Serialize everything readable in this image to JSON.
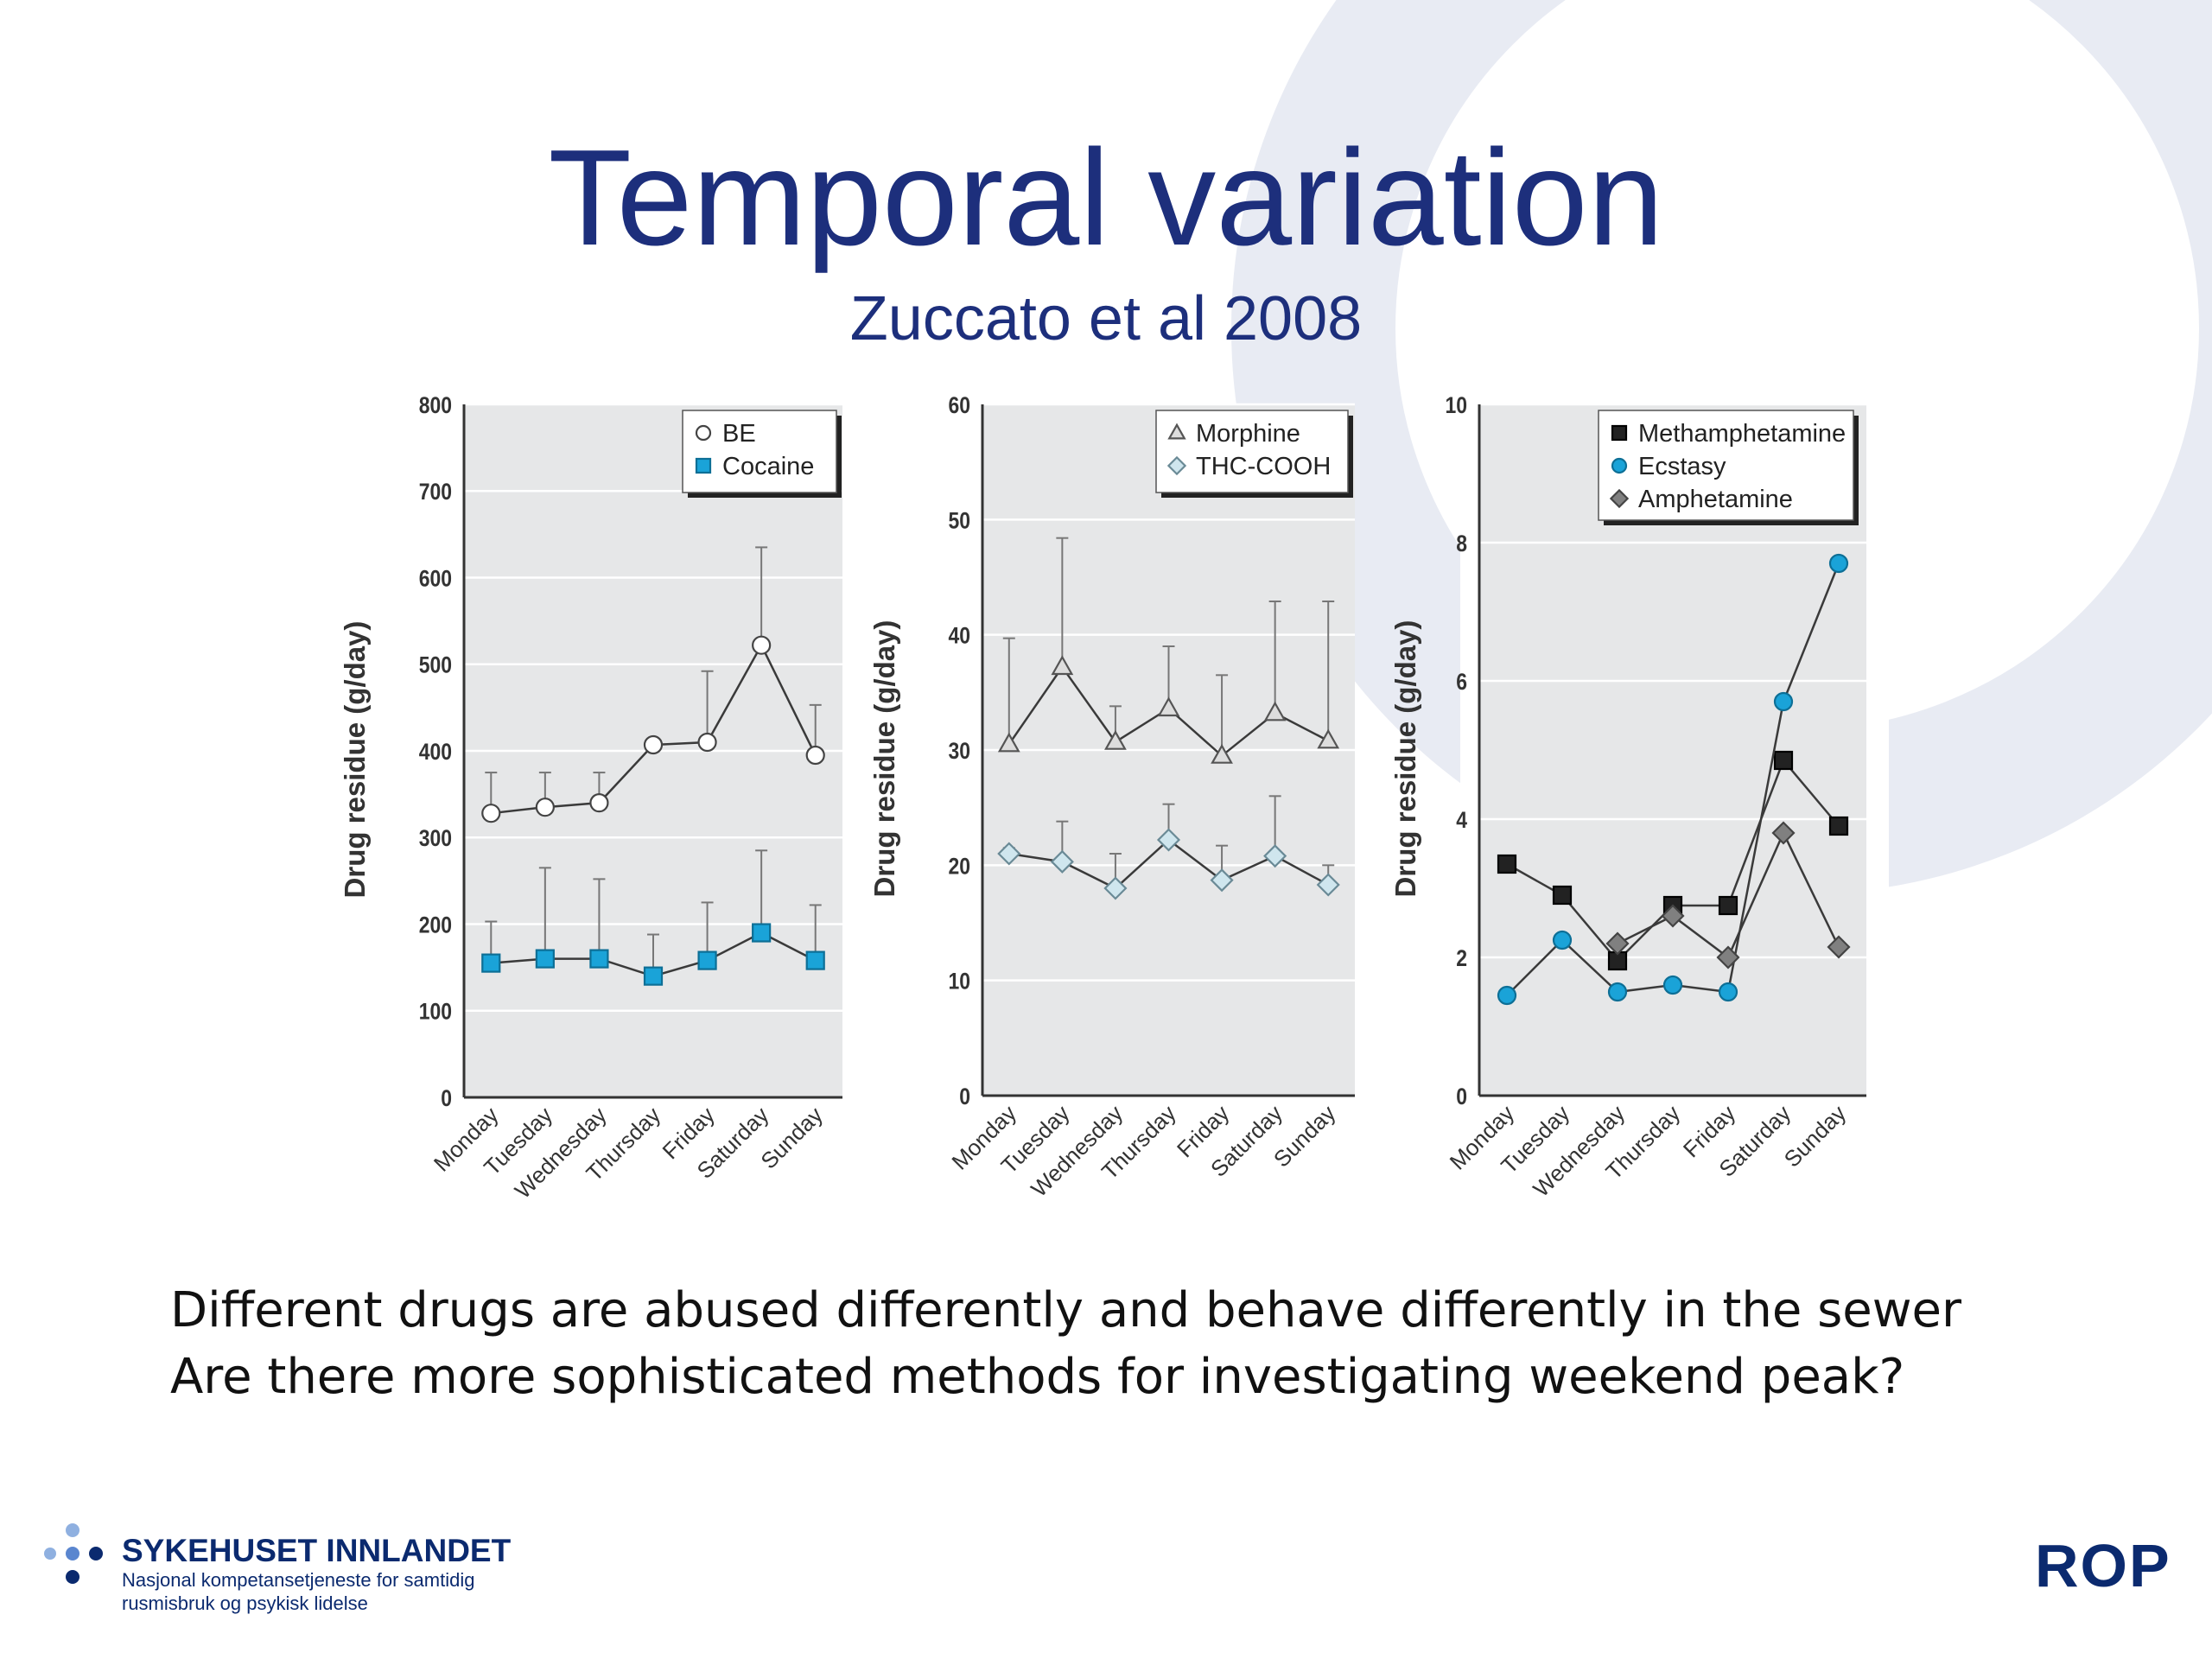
{
  "slide": {
    "title": "Temporal variation",
    "subtitle": "Zuccato et al 2008",
    "body_lines": [
      "Different drugs are abused differently and behave differently in the sewer",
      "Are there more sophisticated methods for investigating weekend peak?"
    ],
    "logo_name": "SYKEHUSET INNLANDET",
    "logo_sub_1": "Nasjonal kompetansetjeneste for samtidig",
    "logo_sub_2": "rusmisbruk og psykisk lidelse",
    "rop_logo": "ROP"
  },
  "colors": {
    "title": "#1d2f7c",
    "panel_bg": "#e6e7e8",
    "line": "#3a3a3a",
    "cocaine": "#1aa3d8",
    "ecstasy": "#1aa3d8",
    "thc": "#cfe6ee",
    "amphetamine": "#808080",
    "methamphetamine": "#222222"
  },
  "chart_data": [
    {
      "type": "line",
      "categories": [
        "Monday",
        "Tuesday",
        "Wednesday",
        "Thursday",
        "Friday",
        "Saturday",
        "Sunday"
      ],
      "ylabel": "Drug residue (g/day)",
      "ylim": [
        0,
        800
      ],
      "yticks": [
        0,
        100,
        200,
        300,
        400,
        500,
        600,
        700,
        800
      ],
      "legend_position": "top-right",
      "series": [
        {
          "name": "BE",
          "marker": "circle-open",
          "values": [
            328,
            335,
            340,
            407,
            410,
            522,
            395
          ],
          "err_upper": [
            375,
            375,
            375,
            null,
            492,
            635,
            453
          ]
        },
        {
          "name": "Cocaine",
          "marker": "square-blue",
          "values": [
            155,
            160,
            160,
            140,
            158,
            190,
            158
          ],
          "err_upper": [
            203,
            265,
            252,
            188,
            225,
            285,
            222
          ]
        }
      ]
    },
    {
      "type": "line",
      "categories": [
        "Monday",
        "Tuesday",
        "Wednesday",
        "Thursday",
        "Friday",
        "Saturday",
        "Sunday"
      ],
      "ylabel": "Drug residue (g/day)",
      "ylim": [
        0,
        60
      ],
      "yticks": [
        0,
        10,
        20,
        30,
        40,
        50,
        60
      ],
      "legend_position": "top-right",
      "series": [
        {
          "name": "Morphine",
          "marker": "triangle-open",
          "values": [
            30.5,
            37.2,
            30.7,
            33.6,
            29.5,
            33.2,
            30.8
          ],
          "err_upper": [
            39.7,
            48.4,
            33.8,
            39.0,
            36.5,
            42.9,
            42.9
          ]
        },
        {
          "name": "THC-COOH",
          "marker": "diamond-light",
          "values": [
            21.0,
            20.3,
            18.0,
            22.2,
            18.7,
            20.8,
            18.3
          ],
          "err_upper": [
            21.5,
            23.8,
            21.0,
            25.3,
            21.7,
            26.0,
            20.0
          ]
        }
      ]
    },
    {
      "type": "line",
      "categories": [
        "Monday",
        "Tuesday",
        "Wednesday",
        "Thursday",
        "Friday",
        "Saturday",
        "Sunday"
      ],
      "ylabel": "Drug residue (g/day)",
      "ylim": [
        0,
        10
      ],
      "yticks": [
        0,
        2,
        4,
        6,
        8,
        10
      ],
      "legend_position": "top-right",
      "series": [
        {
          "name": "Methamphetamine",
          "marker": "square-black",
          "values": [
            3.35,
            2.9,
            1.95,
            2.75,
            2.75,
            4.85,
            3.9
          ]
        },
        {
          "name": "Ecstasy",
          "marker": "circle-blue",
          "values": [
            1.45,
            2.25,
            1.5,
            1.6,
            1.5,
            5.7,
            7.7
          ]
        },
        {
          "name": "Amphetamine",
          "marker": "diamond-gray",
          "values": [
            null,
            null,
            2.2,
            2.6,
            2.0,
            3.8,
            2.15
          ]
        }
      ]
    }
  ]
}
